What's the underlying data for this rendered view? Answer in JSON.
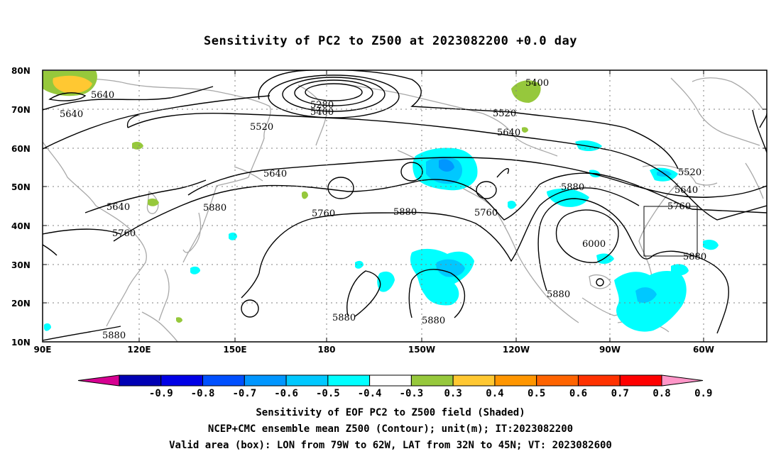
{
  "title": "Sensitivity of PC2 to Z500 at 2023082200 +0.0 day",
  "map": {
    "lat_labels": [
      "80N",
      "70N",
      "60N",
      "50N",
      "40N",
      "30N",
      "20N",
      "10N"
    ],
    "lon_labels": [
      "90E",
      "120E",
      "150E",
      "180",
      "150W",
      "120W",
      "90W",
      "60W"
    ],
    "contour_labels": [
      {
        "text": "5640"
      },
      {
        "text": "5640"
      },
      {
        "text": "5280"
      },
      {
        "text": "5400"
      },
      {
        "text": "5400"
      },
      {
        "text": "5520"
      },
      {
        "text": "5520"
      },
      {
        "text": "5640"
      },
      {
        "text": "5640"
      },
      {
        "text": "5520"
      },
      {
        "text": "5640"
      },
      {
        "text": "5880"
      },
      {
        "text": "5760"
      },
      {
        "text": "5640"
      },
      {
        "text": "5760"
      },
      {
        "text": "5880"
      },
      {
        "text": "5760"
      },
      {
        "text": "6000"
      },
      {
        "text": "5880"
      },
      {
        "text": "5880"
      },
      {
        "text": "5880"
      },
      {
        "text": "5880"
      },
      {
        "text": "5880"
      },
      {
        "text": "5880"
      }
    ],
    "valid_box": {
      "lon_from": "79W",
      "lon_to": "62W",
      "lat_from": "32N",
      "lat_to": "45N"
    }
  },
  "colorbar": {
    "labels": [
      "-0.9",
      "-0.8",
      "-0.7",
      "-0.6",
      "-0.5",
      "-0.4",
      "-0.3",
      "0.3",
      "0.4",
      "0.5",
      "0.6",
      "0.7",
      "0.8",
      "0.9"
    ],
    "colors": [
      "#d60091",
      "#0000b4",
      "#0000e6",
      "#0050ff",
      "#0096ff",
      "#00c8ff",
      "#00ffff",
      "#ffffff",
      "#96c83c",
      "#ffc832",
      "#ff9600",
      "#ff6400",
      "#ff3200",
      "#ff0000",
      "#ff96c8"
    ]
  },
  "captions": {
    "line1": "Sensitivity of EOF PC2 to Z500 field (Shaded)",
    "line2": "NCEP+CMC ensemble mean Z500 (Contour); unit(m); IT:2023082200",
    "line3": "Valid area (box): LON from 79W to 62W, LAT from 32N to 45N; VT: 2023082600"
  }
}
